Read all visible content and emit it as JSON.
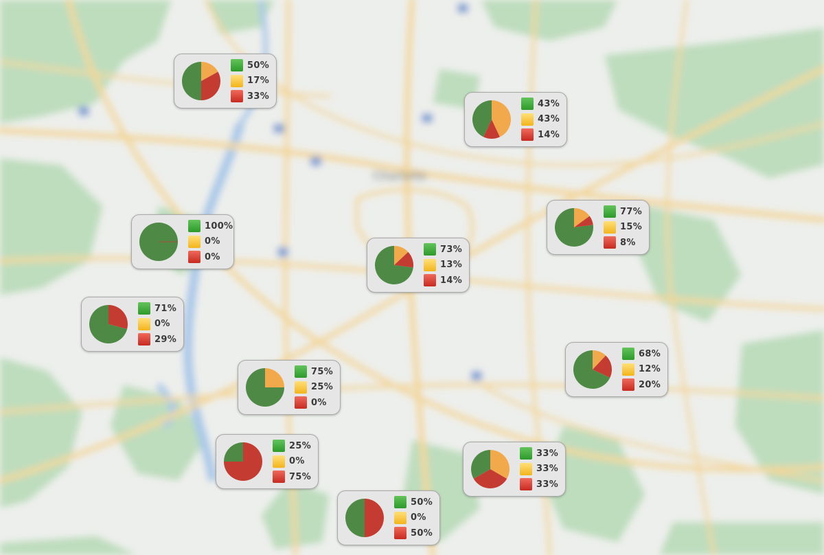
{
  "map": {
    "city_label": "Charlotte"
  },
  "colors": {
    "green": "#4e8a45",
    "yellow": "#f2a94b",
    "red": "#c43b32"
  },
  "markers": [
    {
      "green": "50%",
      "yellow": "17%",
      "red": "33%",
      "values": [
        50,
        17,
        33
      ]
    },
    {
      "green": "43%",
      "yellow": "43%",
      "red": "14%",
      "values": [
        43,
        43,
        14
      ]
    },
    {
      "green": "100%",
      "yellow": "0%",
      "red": "0%",
      "values": [
        100,
        0,
        0
      ]
    },
    {
      "green": "77%",
      "yellow": "15%",
      "red": "8%",
      "values": [
        77,
        15,
        8
      ]
    },
    {
      "green": "73%",
      "yellow": "13%",
      "red": "14%",
      "values": [
        73,
        13,
        14
      ]
    },
    {
      "green": "71%",
      "yellow": "0%",
      "red": "29%",
      "values": [
        71,
        0,
        29
      ]
    },
    {
      "green": "68%",
      "yellow": "12%",
      "red": "20%",
      "values": [
        68,
        12,
        20
      ]
    },
    {
      "green": "75%",
      "yellow": "25%",
      "red": "0%",
      "values": [
        75,
        25,
        0
      ]
    },
    {
      "green": "25%",
      "yellow": "0%",
      "red": "75%",
      "values": [
        25,
        0,
        75
      ]
    },
    {
      "green": "33%",
      "yellow": "33%",
      "red": "33%",
      "values": [
        33,
        33,
        33
      ]
    },
    {
      "green": "50%",
      "yellow": "0%",
      "red": "50%",
      "values": [
        50,
        0,
        50
      ]
    }
  ]
}
